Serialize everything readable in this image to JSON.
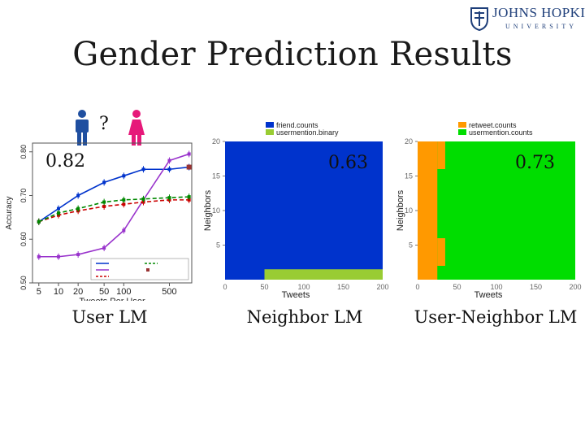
{
  "slide": {
    "title": "Gender Prediction Results",
    "logo_main": "JOHNS HOPKINS",
    "logo_sub": "UNIVERSITY",
    "question_mark": "?",
    "scores": {
      "user_lm": "0.82",
      "neighbor_lm": "0.63",
      "user_neighbor_lm": "0.73"
    },
    "panel_labels": {
      "user_lm": "User LM",
      "neighbor_lm": "Neighbor LM",
      "user_neighbor_lm": "User-Neighbor LM"
    }
  },
  "colors": {
    "male_icon": "#1f4fa0",
    "female_icon": "#e6197a",
    "blue": "#0033cc",
    "lightgreen": "#99cc33",
    "orange": "#ff9900",
    "green": "#00dd00"
  },
  "chart_data": [
    {
      "type": "line",
      "xlabel": "Tweets Per User",
      "ylabel": "Accuracy",
      "xscale": "log",
      "xlim": [
        4,
        1100
      ],
      "ylim": [
        0.5,
        0.82
      ],
      "x_ticks": [
        "5",
        "10",
        "20",
        "50",
        "100",
        "500"
      ],
      "y_ticks": [
        "0.50",
        "0.60",
        "0.70",
        "0.80"
      ],
      "x": [
        5,
        10,
        20,
        50,
        100,
        200,
        500,
        1000
      ],
      "series": [
        {
          "color": "#0033cc",
          "dash": "solid",
          "values": [
            0.64,
            0.67,
            0.7,
            0.73,
            0.745,
            0.76,
            0.76,
            0.765
          ]
        },
        {
          "color": "#9933cc",
          "dash": "solid",
          "values": [
            0.56,
            0.56,
            0.565,
            0.58,
            0.62,
            0.69,
            0.78,
            0.795
          ]
        },
        {
          "color": "#cc0000",
          "dash": "dashed",
          "values": [
            0.64,
            0.655,
            0.665,
            0.675,
            0.68,
            0.685,
            0.69,
            0.69
          ]
        },
        {
          "color": "#008800",
          "dash": "dashed",
          "values": [
            0.64,
            0.66,
            0.67,
            0.685,
            0.69,
            0.692,
            0.695,
            0.697
          ]
        }
      ],
      "extra_point": {
        "x": 1000,
        "y": 0.765,
        "color": "#993333"
      }
    },
    {
      "type": "heatmap",
      "xlabel": "Tweets",
      "ylabel": "Neighbors",
      "xlim": [
        0,
        200
      ],
      "ylim": [
        0,
        20
      ],
      "x_ticks": [
        "0",
        "50",
        "100",
        "150",
        "200"
      ],
      "y_ticks": [
        "5",
        "10",
        "15",
        "20"
      ],
      "legend": [
        {
          "label": "friend.counts",
          "color": "#0033cc"
        },
        {
          "label": "usermention.binary",
          "color": "#99cc33"
        }
      ],
      "regions": [
        {
          "x0": 0,
          "x1": 200,
          "y0": 0,
          "y1": 20,
          "color": "#0033cc"
        },
        {
          "x0": 50,
          "x1": 200,
          "y0": 0,
          "y1": 1.5,
          "color": "#99cc33"
        }
      ]
    },
    {
      "type": "heatmap",
      "xlabel": "Tweets",
      "ylabel": "Neighbors",
      "xlim": [
        0,
        200
      ],
      "ylim": [
        0,
        20
      ],
      "x_ticks": [
        "0",
        "50",
        "100",
        "150",
        "200"
      ],
      "y_ticks": [
        "5",
        "10",
        "15",
        "20"
      ],
      "legend": [
        {
          "label": "retweet.counts",
          "color": "#ff9900"
        },
        {
          "label": "usermention.counts",
          "color": "#00dd00"
        }
      ],
      "regions": [
        {
          "x0": 0,
          "x1": 200,
          "y0": 0,
          "y1": 20,
          "color": "#00dd00"
        },
        {
          "x0": 0,
          "x1": 25,
          "y0": 0,
          "y1": 20,
          "color": "#ff9900"
        },
        {
          "x0": 25,
          "x1": 35,
          "y0": 16,
          "y1": 20,
          "color": "#ff9900"
        },
        {
          "x0": 25,
          "x1": 35,
          "y0": 2,
          "y1": 6,
          "color": "#ff9900"
        }
      ]
    }
  ]
}
